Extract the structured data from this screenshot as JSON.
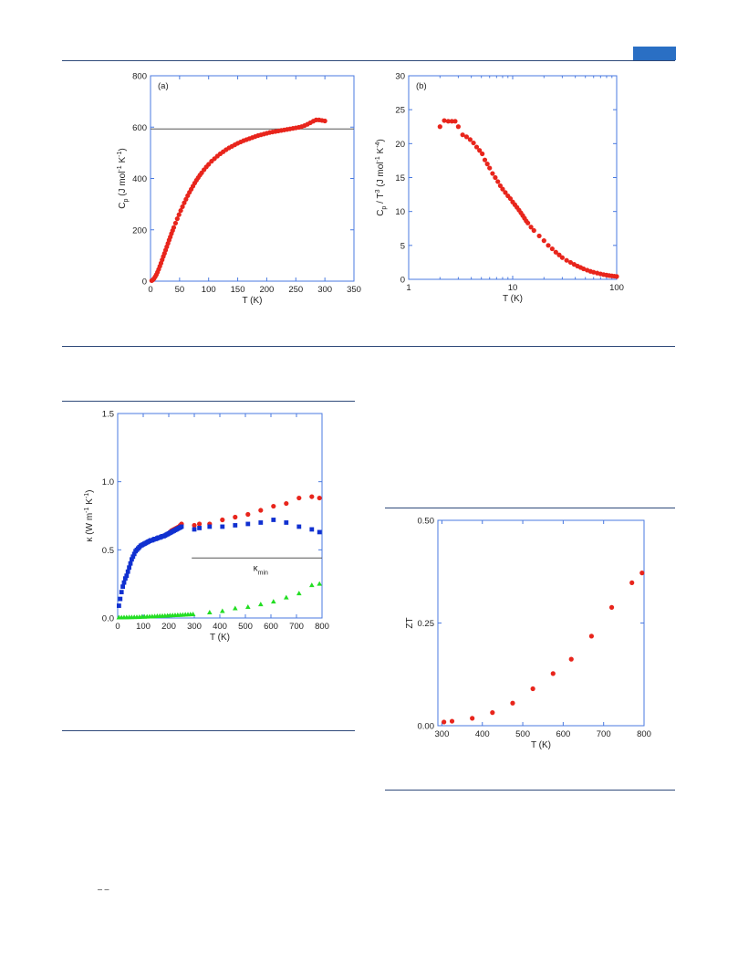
{
  "page": {
    "header_tab_color": "#2a6fc4",
    "rule_color": "#2f4a7a",
    "stray_text": "– –"
  },
  "chart_data": [
    {
      "id": "cp",
      "type": "scatter",
      "panel_label": "(a)",
      "xlabel": "T (K)",
      "ylabel_parts": [
        "C",
        "p",
        " (J mol",
        "-1",
        " K",
        "-1",
        ")"
      ],
      "xlim": [
        0,
        350
      ],
      "ylim": [
        0,
        800
      ],
      "xticks": [
        0,
        50,
        100,
        150,
        200,
        250,
        300,
        350
      ],
      "yticks": [
        0,
        200,
        400,
        600,
        800
      ],
      "reference_line_y": 593,
      "series": [
        {
          "color": "#e8251c",
          "marker": "circle",
          "x": [
            2,
            4,
            6,
            8,
            10,
            12,
            14,
            16,
            18,
            20,
            22,
            24,
            26,
            28,
            30,
            32,
            34,
            36,
            38,
            40,
            43,
            46,
            49,
            52,
            55,
            58,
            61,
            64,
            67,
            70,
            73,
            76,
            79,
            82,
            85,
            88,
            92,
            96,
            100,
            105,
            110,
            115,
            120,
            125,
            130,
            135,
            140,
            145,
            150,
            155,
            160,
            165,
            170,
            175,
            180,
            185,
            190,
            195,
            200,
            205,
            210,
            215,
            220,
            225,
            230,
            235,
            240,
            245,
            250,
            255,
            260,
            265,
            270,
            275,
            280,
            285,
            290,
            295,
            300
          ],
          "y": [
            2,
            5,
            10,
            17,
            25,
            35,
            46,
            58,
            70,
            83,
            96,
            108,
            121,
            134,
            147,
            160,
            172,
            185,
            197,
            209,
            226,
            243,
            259,
            275,
            290,
            305,
            319,
            333,
            346,
            358,
            370,
            382,
            393,
            403,
            413,
            422,
            434,
            445,
            455,
            467,
            477,
            487,
            496,
            504,
            512,
            519,
            525,
            531,
            537,
            542,
            547,
            551,
            555,
            559,
            563,
            567,
            570,
            573,
            576,
            579,
            581,
            583,
            585,
            587,
            589,
            591,
            593,
            595,
            597,
            599,
            602,
            606,
            611,
            617,
            623,
            628,
            628,
            626,
            624
          ]
        }
      ]
    },
    {
      "id": "cpt3",
      "type": "scatter",
      "panel_label": "(b)",
      "xlabel": "T (K)",
      "ylabel_parts": [
        "C",
        "p",
        " / T",
        "3",
        " (J mol",
        "-1",
        " K",
        "-4",
        ")"
      ],
      "xscale": "log",
      "xlim": [
        1,
        100
      ],
      "ylim": [
        0,
        30
      ],
      "xticks": [
        1,
        10,
        100
      ],
      "yticks": [
        0,
        5,
        10,
        15,
        20,
        25,
        30
      ],
      "series": [
        {
          "color": "#e8251c",
          "marker": "circle",
          "x": [
            2.0,
            2.2,
            2.4,
            2.6,
            2.8,
            3.0,
            3.3,
            3.6,
            3.9,
            4.2,
            4.5,
            4.8,
            5.1,
            5.4,
            5.7,
            6.0,
            6.4,
            6.8,
            7.2,
            7.6,
            8.0,
            8.5,
            9.0,
            9.5,
            10,
            10.5,
            11,
            11.5,
            12,
            12.5,
            13,
            13.5,
            14,
            15,
            16,
            18,
            20,
            22,
            24,
            26,
            28,
            30,
            33,
            36,
            39,
            42,
            45,
            48,
            52,
            56,
            60,
            65,
            70,
            75,
            80,
            85,
            90,
            95,
            100
          ],
          "y": [
            22.5,
            23.4,
            23.3,
            23.3,
            23.3,
            22.5,
            21.3,
            21.0,
            20.6,
            20.1,
            19.5,
            19.0,
            18.5,
            17.6,
            17.0,
            16.4,
            15.6,
            15.0,
            14.4,
            13.8,
            13.3,
            12.8,
            12.3,
            11.9,
            11.4,
            11.0,
            10.6,
            10.2,
            9.8,
            9.4,
            9.0,
            8.6,
            8.3,
            7.7,
            7.2,
            6.4,
            5.7,
            5.0,
            4.5,
            4.0,
            3.6,
            3.2,
            2.8,
            2.5,
            2.2,
            1.95,
            1.75,
            1.55,
            1.35,
            1.18,
            1.05,
            0.92,
            0.8,
            0.7,
            0.62,
            0.55,
            0.5,
            0.46,
            0.42
          ]
        }
      ]
    },
    {
      "id": "kappa",
      "type": "scatter",
      "xlabel": "T (K)",
      "ylabel_parts": [
        "κ (W m",
        "-1",
        " K",
        "-1",
        ")"
      ],
      "xlim": [
        0,
        800
      ],
      "ylim": [
        0,
        1.5
      ],
      "xticks": [
        0,
        100,
        200,
        300,
        400,
        500,
        600,
        700,
        800
      ],
      "yticks": [
        0.0,
        0.5,
        1.0,
        1.5
      ],
      "ytick_labels": [
        "0.0",
        "0.5",
        "1.0",
        "1.5"
      ],
      "kmin_label_main": "κ",
      "kmin_label_sub": "min",
      "kmin_value": 0.44,
      "kmin_x_range": [
        290,
        800
      ],
      "series": [
        {
          "color": "#e8251c",
          "marker": "circle",
          "x": [
            200,
            205,
            210,
            215,
            220,
            225,
            230,
            235,
            240,
            245,
            250,
            300,
            320,
            360,
            410,
            460,
            510,
            560,
            610,
            660,
            710,
            760,
            790
          ],
          "y": [
            0.62,
            0.63,
            0.64,
            0.645,
            0.65,
            0.655,
            0.66,
            0.665,
            0.67,
            0.68,
            0.69,
            0.68,
            0.69,
            0.69,
            0.72,
            0.74,
            0.76,
            0.79,
            0.82,
            0.84,
            0.88,
            0.89,
            0.88
          ]
        },
        {
          "color": "#1030d0",
          "marker": "square",
          "x": [
            5,
            10,
            15,
            20,
            25,
            30,
            35,
            40,
            45,
            50,
            55,
            60,
            65,
            70,
            75,
            80,
            85,
            90,
            95,
            100,
            105,
            110,
            115,
            120,
            125,
            130,
            135,
            140,
            145,
            150,
            155,
            160,
            165,
            170,
            175,
            180,
            185,
            190,
            195,
            200,
            205,
            210,
            215,
            220,
            225,
            230,
            235,
            240,
            245,
            250,
            300,
            320,
            360,
            410,
            460,
            510,
            560,
            610,
            660,
            710,
            760,
            790
          ],
          "y": [
            0.09,
            0.14,
            0.19,
            0.23,
            0.26,
            0.29,
            0.31,
            0.34,
            0.37,
            0.4,
            0.43,
            0.45,
            0.47,
            0.49,
            0.5,
            0.51,
            0.52,
            0.53,
            0.535,
            0.54,
            0.545,
            0.55,
            0.555,
            0.56,
            0.565,
            0.57,
            0.57,
            0.575,
            0.58,
            0.58,
            0.585,
            0.59,
            0.59,
            0.595,
            0.6,
            0.6,
            0.605,
            0.61,
            0.615,
            0.62,
            0.625,
            0.63,
            0.635,
            0.64,
            0.645,
            0.65,
            0.655,
            0.66,
            0.665,
            0.67,
            0.65,
            0.66,
            0.67,
            0.67,
            0.68,
            0.69,
            0.7,
            0.72,
            0.7,
            0.67,
            0.65,
            0.63
          ]
        },
        {
          "color": "#22dd22",
          "marker": "triangle",
          "x": [
            5,
            15,
            25,
            35,
            45,
            55,
            65,
            75,
            85,
            95,
            105,
            115,
            125,
            135,
            145,
            155,
            165,
            175,
            185,
            195,
            205,
            215,
            225,
            235,
            245,
            255,
            265,
            275,
            285,
            295,
            360,
            410,
            460,
            510,
            560,
            610,
            660,
            710,
            760,
            790
          ],
          "y": [
            0.003,
            0.003,
            0.004,
            0.004,
            0.005,
            0.005,
            0.006,
            0.006,
            0.007,
            0.008,
            0.008,
            0.009,
            0.01,
            0.011,
            0.012,
            0.013,
            0.014,
            0.015,
            0.016,
            0.017,
            0.018,
            0.019,
            0.02,
            0.021,
            0.022,
            0.023,
            0.024,
            0.025,
            0.026,
            0.027,
            0.04,
            0.05,
            0.07,
            0.08,
            0.1,
            0.12,
            0.15,
            0.18,
            0.24,
            0.25
          ]
        }
      ]
    },
    {
      "id": "zt",
      "type": "scatter",
      "xlabel": "T (K)",
      "ylabel": "ZT",
      "xlim": [
        290,
        800
      ],
      "ylim": [
        0,
        0.5
      ],
      "xticks": [
        300,
        400,
        500,
        600,
        700,
        800
      ],
      "yticks": [
        0.0,
        0.25,
        0.5
      ],
      "ytick_labels": [
        "0.00",
        "0.25",
        "0.50"
      ],
      "series": [
        {
          "color": "#e8251c",
          "marker": "circle",
          "x": [
            305,
            325,
            375,
            425,
            475,
            525,
            575,
            620,
            670,
            720,
            770,
            795
          ],
          "y": [
            0.009,
            0.011,
            0.018,
            0.032,
            0.055,
            0.09,
            0.127,
            0.162,
            0.218,
            0.288,
            0.348,
            0.372
          ]
        }
      ]
    }
  ]
}
